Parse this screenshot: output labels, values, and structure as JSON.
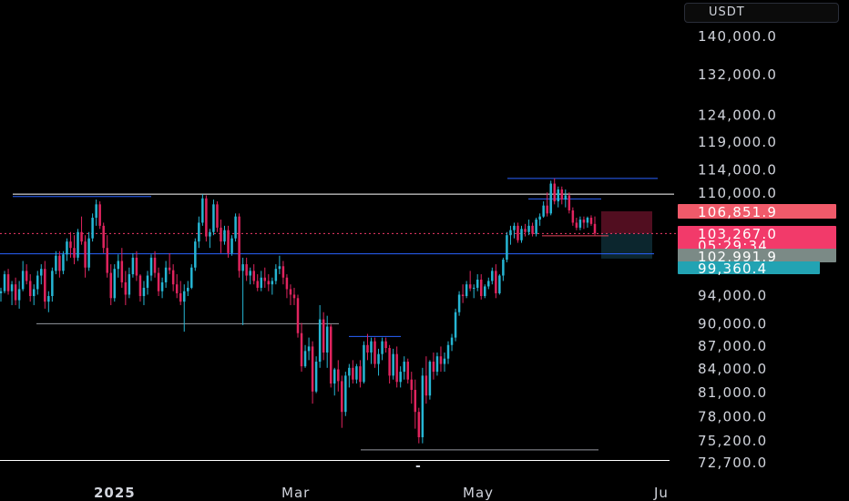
{
  "chart_data": {
    "type": "candlestick",
    "currency": "USDT",
    "x_axis": {
      "labels": [
        "2025",
        "Mar",
        "May",
        "Ju"
      ],
      "emphasized": [
        "2025"
      ],
      "center_marker": "-"
    },
    "y_axis": {
      "scale": "log",
      "tick_labels": [
        "140,000.0",
        "132,000.0",
        "124,000.0",
        "119,000.0",
        "114,000.0",
        "110,000.0",
        "94,000.0",
        "90,000.0",
        "87,000.0",
        "84,000.0",
        "81,000.0",
        "78,000.0",
        "75,200.0",
        "72,700.0"
      ],
      "ticks": [
        140000,
        132000,
        124000,
        119000,
        114000,
        110000,
        94000,
        90000,
        87000,
        84000,
        81000,
        78000,
        75200,
        72700
      ]
    },
    "price_labels": [
      {
        "text": "106,851.9",
        "value": 106851.9,
        "color": "#f05a6a"
      },
      {
        "text": "103,267.0",
        "value": 103267.0,
        "color": "#f23a6a"
      },
      {
        "text": "05:29:34",
        "value": 103267.0,
        "color": "#f23a6a"
      },
      {
        "text": "102,991.9",
        "value": 102991.9,
        "color": "#7b8a86"
      },
      {
        "text": "99,360.4",
        "value": 99360.4,
        "color": "#22a3b3"
      }
    ],
    "horizontal_levels": [
      {
        "value": 109700,
        "color": "#ffffff"
      },
      {
        "value": 72850,
        "color": "#ffffff"
      },
      {
        "value": 100100,
        "color": "#2962ff"
      },
      {
        "value": 108900,
        "color": "#2962ff"
      },
      {
        "value": 112400,
        "color": "#2962ff"
      },
      {
        "value": 89900,
        "color": "#9598a1"
      },
      {
        "value": 88150,
        "color": "#2962ff"
      },
      {
        "value": 74050,
        "color": "#9598a1"
      },
      {
        "value": 102900,
        "color": "#e6435a"
      }
    ],
    "current_price": 103267.0,
    "position_zones": [
      {
        "kind": "stop",
        "top": 106851.9,
        "bottom": 103267.0,
        "color": "#5a0f23"
      },
      {
        "kind": "target",
        "top": 103267.0,
        "bottom": 99360.4,
        "color": "#0d2a33"
      }
    ],
    "colors": {
      "up": "#26b6d4",
      "down": "#e0245e",
      "background": "#000000"
    },
    "ohlc_estimate": [
      [
        94200,
        95000,
        93000,
        94500
      ],
      [
        94500,
        97500,
        94200,
        97000
      ],
      [
        97000,
        97800,
        94000,
        94500
      ],
      [
        94500,
        96000,
        92500,
        95500
      ],
      [
        95500,
        96500,
        92500,
        93200
      ],
      [
        93200,
        96000,
        92000,
        94800
      ],
      [
        94800,
        99000,
        94500,
        97500
      ],
      [
        97500,
        98500,
        95500,
        96000
      ],
      [
        96000,
        97000,
        93000,
        93800
      ],
      [
        93800,
        95500,
        92500,
        94800
      ],
      [
        94800,
        97500,
        94000,
        96800
      ],
      [
        96800,
        98500,
        95500,
        97800
      ],
      [
        97800,
        99000,
        92000,
        93000
      ],
      [
        93000,
        94500,
        91500,
        93800
      ],
      [
        93800,
        98000,
        93000,
        97500
      ],
      [
        97500,
        100500,
        97000,
        99800
      ],
      [
        99800,
        100500,
        96500,
        97500
      ],
      [
        97500,
        100500,
        97000,
        100000
      ],
      [
        100000,
        102500,
        99000,
        102000
      ],
      [
        102000,
        103500,
        99500,
        101000
      ],
      [
        101000,
        103000,
        98500,
        99500
      ],
      [
        99500,
        104000,
        99000,
        103500
      ],
      [
        103500,
        106000,
        101500,
        102000
      ],
      [
        102000,
        103000,
        96500,
        98000
      ],
      [
        98000,
        103500,
        97500,
        102500
      ],
      [
        102500,
        106500,
        102000,
        105800
      ],
      [
        105800,
        108800,
        104500,
        108000
      ],
      [
        108000,
        108500,
        104000,
        104500
      ],
      [
        104500,
        105000,
        100200,
        101000
      ],
      [
        101000,
        103000,
        96500,
        97200
      ],
      [
        97200,
        98500,
        92500,
        93500
      ],
      [
        93500,
        98500,
        93000,
        97800
      ],
      [
        97800,
        100000,
        96500,
        99000
      ],
      [
        99000,
        101000,
        95000,
        95800
      ],
      [
        95800,
        97500,
        92500,
        94000
      ],
      [
        94000,
        98000,
        93500,
        97000
      ],
      [
        97000,
        100200,
        96500,
        99500
      ],
      [
        99500,
        100500,
        96000,
        96800
      ],
      [
        96800,
        97000,
        93000,
        93800
      ],
      [
        93800,
        96000,
        92500,
        95000
      ],
      [
        95000,
        97500,
        94000,
        96800
      ],
      [
        96800,
        100000,
        96000,
        99500
      ],
      [
        99500,
        100500,
        96500,
        97200
      ],
      [
        97200,
        98000,
        93800,
        94500
      ],
      [
        94500,
        96500,
        93500,
        95800
      ],
      [
        95800,
        99000,
        95000,
        98000
      ],
      [
        98000,
        100200,
        97000,
        97600
      ],
      [
        97600,
        98500,
        94500,
        95500
      ],
      [
        95500,
        97000,
        93500,
        94200
      ],
      [
        94200,
        96000,
        92500,
        93000
      ],
      [
        93000,
        95500,
        88800,
        94500
      ],
      [
        94500,
        96000,
        93800,
        95000
      ],
      [
        95000,
        98500,
        94800,
        98000
      ],
      [
        98000,
        102500,
        97500,
        102000
      ],
      [
        102000,
        106000,
        101000,
        105000
      ],
      [
        105000,
        109700,
        104500,
        109000
      ],
      [
        109000,
        109500,
        102000,
        102800
      ],
      [
        102800,
        104000,
        101000,
        103500
      ],
      [
        103500,
        108800,
        103000,
        108000
      ],
      [
        108000,
        108500,
        103500,
        104200
      ],
      [
        104200,
        105500,
        100200,
        102000
      ],
      [
        102000,
        104500,
        101500,
        103800
      ],
      [
        103800,
        104500,
        99500,
        100200
      ],
      [
        100200,
        103000,
        99800,
        102500
      ],
      [
        102500,
        106500,
        102000,
        106000
      ],
      [
        106000,
        106500,
        96500,
        97500
      ],
      [
        97500,
        99500,
        89700,
        98500
      ],
      [
        98500,
        99500,
        96000,
        96800
      ],
      [
        96800,
        98000,
        95500,
        97500
      ],
      [
        97500,
        98500,
        95500,
        96000
      ],
      [
        96000,
        97000,
        94500,
        95000
      ],
      [
        95000,
        97500,
        94500,
        96500
      ],
      [
        96500,
        98000,
        95000,
        96000
      ],
      [
        96000,
        97000,
        94500,
        95500
      ],
      [
        95500,
        96500,
        94000,
        96000
      ],
      [
        96000,
        98500,
        95500,
        97800
      ],
      [
        97800,
        99800,
        97000,
        98200
      ],
      [
        98200,
        99000,
        95500,
        96500
      ],
      [
        96500,
        97000,
        93500,
        94800
      ],
      [
        94800,
        95500,
        92500,
        94000
      ],
      [
        94000,
        95000,
        92500,
        93500
      ],
      [
        93500,
        94000,
        88000,
        88600
      ],
      [
        88600,
        90000,
        83500,
        84200
      ],
      [
        84200,
        87000,
        84000,
        86200
      ],
      [
        86200,
        88000,
        85000,
        86800
      ],
      [
        86800,
        87500,
        79500,
        81000
      ],
      [
        81000,
        85500,
        80800,
        84800
      ],
      [
        84800,
        92500,
        84000,
        90500
      ],
      [
        90500,
        91500,
        85000,
        86000
      ],
      [
        86000,
        91000,
        84000,
        89500
      ],
      [
        89500,
        89800,
        81500,
        82000
      ],
      [
        82000,
        84000,
        80500,
        83800
      ],
      [
        83800,
        85000,
        81000,
        82300
      ],
      [
        82300,
        83000,
        76600,
        78500
      ],
      [
        78500,
        83500,
        78000,
        83000
      ],
      [
        83000,
        84500,
        81500,
        84000
      ],
      [
        84000,
        85000,
        82000,
        82500
      ],
      [
        82500,
        84500,
        82000,
        84200
      ],
      [
        84200,
        85000,
        81500,
        82200
      ],
      [
        82200,
        87500,
        82000,
        87000
      ],
      [
        87000,
        88500,
        85000,
        86000
      ],
      [
        86000,
        88000,
        84500,
        87500
      ],
      [
        87500,
        88000,
        84000,
        84500
      ],
      [
        84500,
        86500,
        83000,
        85800
      ],
      [
        85800,
        88000,
        85000,
        87500
      ],
      [
        87500,
        88000,
        86000,
        86600
      ],
      [
        86600,
        87000,
        82000,
        83000
      ],
      [
        83000,
        86500,
        82500,
        85800
      ],
      [
        85800,
        86800,
        81500,
        82200
      ],
      [
        82200,
        84200,
        81500,
        83500
      ],
      [
        83500,
        85500,
        82500,
        84800
      ],
      [
        84800,
        85200,
        82000,
        82500
      ],
      [
        82500,
        83500,
        79500,
        81200
      ],
      [
        81200,
        82500,
        76500,
        78500
      ],
      [
        78500,
        79000,
        74800,
        75500
      ],
      [
        75500,
        84000,
        74800,
        83000
      ],
      [
        83000,
        85500,
        79500,
        80500
      ],
      [
        80500,
        85000,
        80000,
        84800
      ],
      [
        84800,
        86000,
        82500,
        83500
      ],
      [
        83500,
        86000,
        83000,
        85500
      ],
      [
        85500,
        86800,
        83500,
        84500
      ],
      [
        84500,
        86000,
        83500,
        85200
      ],
      [
        85200,
        87500,
        84500,
        87000
      ],
      [
        87000,
        88500,
        86200,
        88000
      ],
      [
        88000,
        92000,
        87500,
        91500
      ],
      [
        91500,
        94500,
        91000,
        94000
      ],
      [
        94000,
        95500,
        92800,
        93800
      ],
      [
        93800,
        96000,
        93500,
        95500
      ],
      [
        95500,
        97500,
        94500,
        94900
      ],
      [
        94900,
        95500,
        93500,
        95000
      ],
      [
        95000,
        97000,
        94500,
        96200
      ],
      [
        96200,
        97000,
        93300,
        93800
      ],
      [
        93800,
        95500,
        93500,
        95200
      ],
      [
        95200,
        96500,
        94800,
        96000
      ],
      [
        96000,
        98000,
        95500,
        97500
      ],
      [
        97500,
        98500,
        93500,
        94200
      ],
      [
        94200,
        97000,
        94000,
        96800
      ],
      [
        96800,
        99500,
        96000,
        99200
      ],
      [
        99200,
        103500,
        98800,
        103000
      ],
      [
        103000,
        104500,
        101500,
        103800
      ],
      [
        103800,
        105000,
        102500,
        104500
      ],
      [
        104500,
        105000,
        101800,
        102200
      ],
      [
        102200,
        104500,
        101800,
        104000
      ],
      [
        104000,
        104800,
        102800,
        103500
      ],
      [
        103500,
        105500,
        103000,
        104500
      ],
      [
        104500,
        105000,
        102800,
        103200
      ],
      [
        103200,
        105800,
        102800,
        105500
      ],
      [
        105500,
        106500,
        104500,
        106000
      ],
      [
        106000,
        108500,
        105800,
        107800
      ],
      [
        107800,
        110000,
        106000,
        106500
      ],
      [
        106500,
        112000,
        106200,
        111500
      ],
      [
        111500,
        112400,
        108000,
        108500
      ],
      [
        108500,
        111000,
        107500,
        110500
      ],
      [
        110500,
        111000,
        108000,
        108800
      ],
      [
        108800,
        110500,
        107500,
        109500
      ],
      [
        109500,
        110000,
        106500,
        107000
      ],
      [
        107000,
        107500,
        104500,
        105000
      ],
      [
        105000,
        105800,
        103800,
        104200
      ],
      [
        104200,
        106000,
        103800,
        105500
      ],
      [
        105500,
        106000,
        104000,
        105000
      ],
      [
        105000,
        106000,
        104200,
        105800
      ],
      [
        105800,
        106200,
        104500,
        104800
      ],
      [
        104800,
        106000,
        103000,
        103267
      ]
    ]
  }
}
